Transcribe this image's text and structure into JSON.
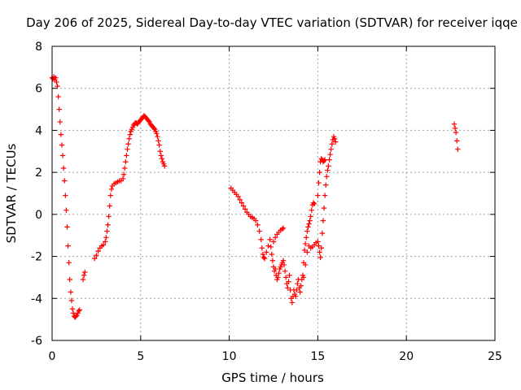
{
  "chart_data": {
    "type": "scatter",
    "title": "Day 206 of 2025, Sidereal Day-to-day VTEC variation (SDTVAR) for receiver iqqe",
    "xlabel": "GPS time / hours",
    "ylabel": "SDTVAR / TECUs",
    "xlim": [
      0,
      25
    ],
    "ylim": [
      -6,
      8
    ],
    "xticks": [
      0,
      5,
      10,
      15,
      20,
      25
    ],
    "yticks": [
      -6,
      -4,
      -2,
      0,
      2,
      4,
      6,
      8
    ],
    "xtick_labels": [
      "0",
      "5",
      "10",
      "15",
      "20",
      "25"
    ],
    "ytick_labels": [
      "-6",
      "-4",
      "-2",
      "0",
      "2",
      "4",
      "6",
      "8"
    ],
    "grid": true,
    "marker": "+",
    "color": "#ff0000",
    "series": [
      {
        "name": "SDTVAR",
        "points": [
          [
            0.0,
            6.5
          ],
          [
            0.05,
            6.45
          ],
          [
            0.1,
            6.55
          ],
          [
            0.15,
            6.4
          ],
          [
            0.2,
            6.5
          ],
          [
            0.25,
            6.3
          ],
          [
            0.3,
            6.1
          ],
          [
            0.35,
            5.6
          ],
          [
            0.4,
            5.0
          ],
          [
            0.45,
            4.4
          ],
          [
            0.5,
            3.8
          ],
          [
            0.55,
            3.3
          ],
          [
            0.6,
            2.8
          ],
          [
            0.65,
            2.2
          ],
          [
            0.7,
            1.6
          ],
          [
            0.75,
            0.9
          ],
          [
            0.8,
            0.2
          ],
          [
            0.85,
            -0.6
          ],
          [
            0.9,
            -1.5
          ],
          [
            0.95,
            -2.3
          ],
          [
            1.0,
            -3.1
          ],
          [
            1.05,
            -3.7
          ],
          [
            1.1,
            -4.1
          ],
          [
            1.15,
            -4.5
          ],
          [
            1.2,
            -4.7
          ],
          [
            1.25,
            -4.85
          ],
          [
            1.3,
            -4.9
          ],
          [
            1.35,
            -4.85
          ],
          [
            1.4,
            -4.8
          ],
          [
            1.45,
            -4.7
          ],
          [
            1.5,
            -4.6
          ],
          [
            1.55,
            -4.55
          ],
          [
            1.75,
            -3.1
          ],
          [
            1.8,
            -2.9
          ],
          [
            1.85,
            -2.75
          ],
          [
            2.4,
            -2.1
          ],
          [
            2.5,
            -1.95
          ],
          [
            2.6,
            -1.75
          ],
          [
            2.7,
            -1.6
          ],
          [
            2.8,
            -1.5
          ],
          [
            2.9,
            -1.45
          ],
          [
            3.0,
            -1.3
          ],
          [
            3.05,
            -1.1
          ],
          [
            3.1,
            -0.8
          ],
          [
            3.15,
            -0.5
          ],
          [
            3.2,
            -0.1
          ],
          [
            3.25,
            0.4
          ],
          [
            3.3,
            0.9
          ],
          [
            3.35,
            1.2
          ],
          [
            3.4,
            1.35
          ],
          [
            3.5,
            1.45
          ],
          [
            3.6,
            1.5
          ],
          [
            3.7,
            1.55
          ],
          [
            3.8,
            1.6
          ],
          [
            3.9,
            1.6
          ],
          [
            4.0,
            1.7
          ],
          [
            4.05,
            1.9
          ],
          [
            4.1,
            2.2
          ],
          [
            4.15,
            2.5
          ],
          [
            4.2,
            2.8
          ],
          [
            4.25,
            3.1
          ],
          [
            4.3,
            3.35
          ],
          [
            4.35,
            3.6
          ],
          [
            4.4,
            3.8
          ],
          [
            4.45,
            3.95
          ],
          [
            4.5,
            4.05
          ],
          [
            4.55,
            4.15
          ],
          [
            4.6,
            4.25
          ],
          [
            4.65,
            4.3
          ],
          [
            4.7,
            4.35
          ],
          [
            4.75,
            4.35
          ],
          [
            4.8,
            4.3
          ],
          [
            4.85,
            4.35
          ],
          [
            4.9,
            4.4
          ],
          [
            4.95,
            4.45
          ],
          [
            5.0,
            4.5
          ],
          [
            5.05,
            4.55
          ],
          [
            5.1,
            4.6
          ],
          [
            5.15,
            4.65
          ],
          [
            5.2,
            4.7
          ],
          [
            5.25,
            4.65
          ],
          [
            5.3,
            4.6
          ],
          [
            5.35,
            4.55
          ],
          [
            5.4,
            4.5
          ],
          [
            5.45,
            4.45
          ],
          [
            5.5,
            4.4
          ],
          [
            5.55,
            4.3
          ],
          [
            5.6,
            4.25
          ],
          [
            5.65,
            4.2
          ],
          [
            5.7,
            4.15
          ],
          [
            5.75,
            4.1
          ],
          [
            5.8,
            4.05
          ],
          [
            5.85,
            3.95
          ],
          [
            5.9,
            3.85
          ],
          [
            5.95,
            3.7
          ],
          [
            6.0,
            3.5
          ],
          [
            6.05,
            3.3
          ],
          [
            6.1,
            3.0
          ],
          [
            6.15,
            2.8
          ],
          [
            6.2,
            2.65
          ],
          [
            6.25,
            2.5
          ],
          [
            6.3,
            2.4
          ],
          [
            6.35,
            2.3
          ],
          [
            10.1,
            1.25
          ],
          [
            10.2,
            1.15
          ],
          [
            10.3,
            1.05
          ],
          [
            10.4,
            0.95
          ],
          [
            10.5,
            0.85
          ],
          [
            10.6,
            0.7
          ],
          [
            10.7,
            0.55
          ],
          [
            10.8,
            0.4
          ],
          [
            10.9,
            0.25
          ],
          [
            11.0,
            0.1
          ],
          [
            11.1,
            0.0
          ],
          [
            11.2,
            -0.1
          ],
          [
            11.3,
            -0.15
          ],
          [
            11.4,
            -0.2
          ],
          [
            11.5,
            -0.3
          ],
          [
            11.6,
            -0.5
          ],
          [
            11.7,
            -0.8
          ],
          [
            11.8,
            -1.2
          ],
          [
            11.85,
            -1.6
          ],
          [
            11.9,
            -1.9
          ],
          [
            11.95,
            -2.05
          ],
          [
            12.0,
            -2.1
          ],
          [
            12.1,
            -1.8
          ],
          [
            12.2,
            -1.5
          ],
          [
            12.3,
            -1.2
          ],
          [
            12.35,
            -1.55
          ],
          [
            12.4,
            -1.9
          ],
          [
            12.45,
            -2.2
          ],
          [
            12.5,
            -2.5
          ],
          [
            12.55,
            -2.7
          ],
          [
            12.6,
            -2.6
          ],
          [
            12.5,
            -1.3
          ],
          [
            12.6,
            -1.1
          ],
          [
            12.7,
            -0.95
          ],
          [
            12.8,
            -0.85
          ],
          [
            12.9,
            -0.75
          ],
          [
            13.0,
            -0.7
          ],
          [
            13.05,
            -0.65
          ],
          [
            12.65,
            -2.9
          ],
          [
            12.7,
            -3.1
          ],
          [
            12.75,
            -3.0
          ],
          [
            12.8,
            -2.8
          ],
          [
            12.85,
            -2.6
          ],
          [
            12.9,
            -2.5
          ],
          [
            12.95,
            -2.4
          ],
          [
            13.0,
            -2.3
          ],
          [
            13.05,
            -2.2
          ],
          [
            13.1,
            -2.4
          ],
          [
            13.15,
            -2.7
          ],
          [
            13.2,
            -3.0
          ],
          [
            13.25,
            -3.3
          ],
          [
            13.3,
            -3.5
          ],
          [
            13.35,
            -3.2
          ],
          [
            13.4,
            -2.9
          ],
          [
            13.45,
            -3.6
          ],
          [
            13.5,
            -4.0
          ],
          [
            13.55,
            -4.2
          ],
          [
            13.6,
            -3.9
          ],
          [
            13.65,
            -3.6
          ],
          [
            13.7,
            -3.8
          ],
          [
            13.75,
            -3.9
          ],
          [
            13.8,
            -3.6
          ],
          [
            13.85,
            -3.3
          ],
          [
            13.9,
            -3.1
          ],
          [
            13.95,
            -3.5
          ],
          [
            14.0,
            -3.7
          ],
          [
            14.05,
            -3.4
          ],
          [
            14.1,
            -3.1
          ],
          [
            14.15,
            -2.9
          ],
          [
            14.2,
            -2.3
          ],
          [
            14.25,
            -1.7
          ],
          [
            14.3,
            -1.4
          ],
          [
            14.35,
            -1.1
          ],
          [
            14.4,
            -0.8
          ],
          [
            14.45,
            -0.6
          ],
          [
            14.5,
            -0.45
          ],
          [
            14.55,
            -0.3
          ],
          [
            14.6,
            -0.1
          ],
          [
            14.65,
            0.2
          ],
          [
            14.7,
            0.45
          ],
          [
            14.75,
            0.55
          ],
          [
            14.8,
            0.5
          ],
          [
            14.2,
            -3.0
          ],
          [
            14.3,
            -2.4
          ],
          [
            14.4,
            -1.8
          ],
          [
            14.5,
            -1.5
          ],
          [
            14.6,
            -1.6
          ],
          [
            14.7,
            -1.55
          ],
          [
            14.8,
            -1.45
          ],
          [
            14.9,
            -1.35
          ],
          [
            15.0,
            -1.3
          ],
          [
            15.05,
            -1.5
          ],
          [
            15.1,
            -1.8
          ],
          [
            15.15,
            -2.05
          ],
          [
            15.0,
            0.9
          ],
          [
            15.05,
            1.5
          ],
          [
            15.1,
            2.0
          ],
          [
            15.15,
            2.5
          ],
          [
            15.2,
            2.65
          ],
          [
            15.25,
            2.6
          ],
          [
            15.3,
            2.5
          ],
          [
            15.35,
            2.55
          ],
          [
            15.4,
            2.6
          ],
          [
            15.2,
            -1.6
          ],
          [
            15.25,
            -0.9
          ],
          [
            15.3,
            -0.3
          ],
          [
            15.35,
            0.3
          ],
          [
            15.4,
            0.9
          ],
          [
            15.45,
            1.4
          ],
          [
            15.5,
            1.8
          ],
          [
            15.55,
            2.1
          ],
          [
            15.6,
            2.3
          ],
          [
            15.65,
            2.6
          ],
          [
            15.7,
            2.85
          ],
          [
            15.75,
            3.1
          ],
          [
            15.8,
            3.35
          ],
          [
            15.85,
            3.55
          ],
          [
            15.9,
            3.7
          ],
          [
            15.95,
            3.6
          ],
          [
            16.0,
            3.45
          ],
          [
            22.7,
            4.3
          ],
          [
            22.75,
            4.1
          ],
          [
            22.8,
            3.9
          ],
          [
            22.85,
            3.5
          ],
          [
            22.9,
            3.1
          ]
        ]
      }
    ]
  }
}
